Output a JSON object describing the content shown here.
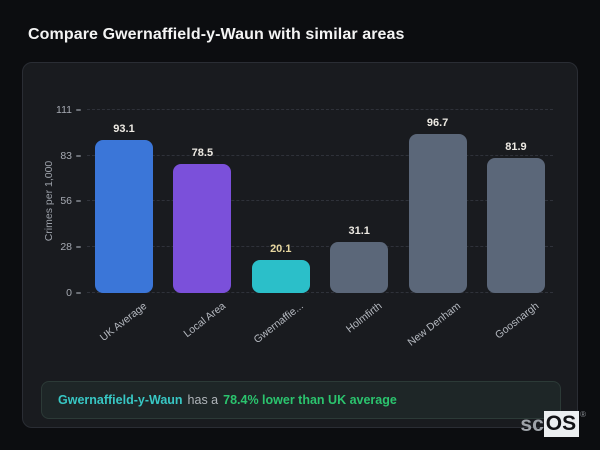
{
  "page": {
    "title": "Compare Gwernaffield-y-Waun with similar areas"
  },
  "chart_data": {
    "type": "bar",
    "categories": [
      "UK Average",
      "Local Area",
      "Gwernaffie...",
      "Holmfirth",
      "New Denham",
      "Goosnargh"
    ],
    "values": [
      93.1,
      78.5,
      20.1,
      31.1,
      96.7,
      81.9
    ],
    "bar_colors": [
      "#3b76d8",
      "#7b50da",
      "#2bbfc9",
      "#5b6779",
      "#5b6779",
      "#5b6779"
    ],
    "value_label_colors": [
      "#edeae3",
      "#edeae3",
      "#e7d7a0",
      "#edeae3",
      "#edeae3",
      "#edeae3"
    ],
    "title": "",
    "xlabel": "",
    "ylabel": "Crimes per 1,000",
    "yticks": [
      0,
      28,
      56,
      83,
      111
    ],
    "ylim": [
      0,
      111
    ],
    "grid": "dashed horizontal",
    "legend": "none",
    "highlighted_category": "Gwernaffie...",
    "accent_colors": {
      "uk_average": "#3b76d8",
      "local_area": "#7b50da",
      "highlight": "#2bbfc9",
      "comparison": "#5b6779"
    }
  },
  "note": {
    "area_name": "Gwernaffield-y-Waun",
    "connector": "has a",
    "highlight": "78.4% lower than UK average",
    "area_color": "#38c7c4",
    "highlight_color": "#2bc46e"
  },
  "logo": {
    "prefix": "sc",
    "suffix": "OS",
    "registered": "®"
  }
}
